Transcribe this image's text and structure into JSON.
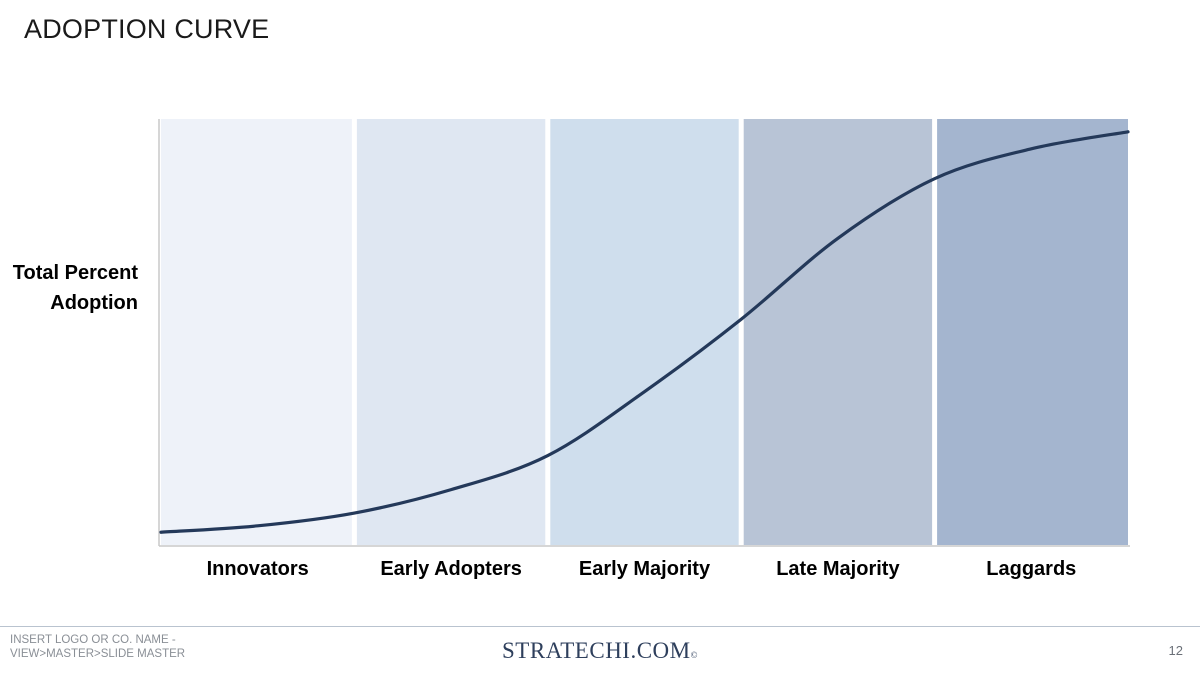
{
  "slide": {
    "title": "ADOPTION CURVE",
    "page_number": "12"
  },
  "footer": {
    "left_text": "INSERT LOGO OR CO. NAME -\nVIEW>MASTER>SLIDE MASTER",
    "brand": "STRATECHI.COM",
    "brand_mark": "©"
  },
  "chart_data": {
    "type": "area",
    "ylabel": "Total Percent\nAdoption",
    "xlabel": "",
    "categories": [
      "Innovators",
      "Early Adopters",
      "Early Majority",
      "Late Majority",
      "Laggards"
    ],
    "band_colors": [
      "#eef2f9",
      "#dfe7f2",
      "#cfdeed",
      "#b8c4d6",
      "#a4b5cf"
    ],
    "line_color": "#24395a",
    "ylim": [
      0,
      100
    ],
    "xlim": [
      0,
      5
    ],
    "series": [
      {
        "x": [
          0,
          0.5,
          1,
          1.5,
          2,
          2.5,
          3,
          3.5,
          4,
          4.5,
          5
        ],
        "values": [
          3,
          4.5,
          7.5,
          13,
          21,
          36,
          53,
          72,
          86,
          93,
          97
        ]
      }
    ]
  }
}
